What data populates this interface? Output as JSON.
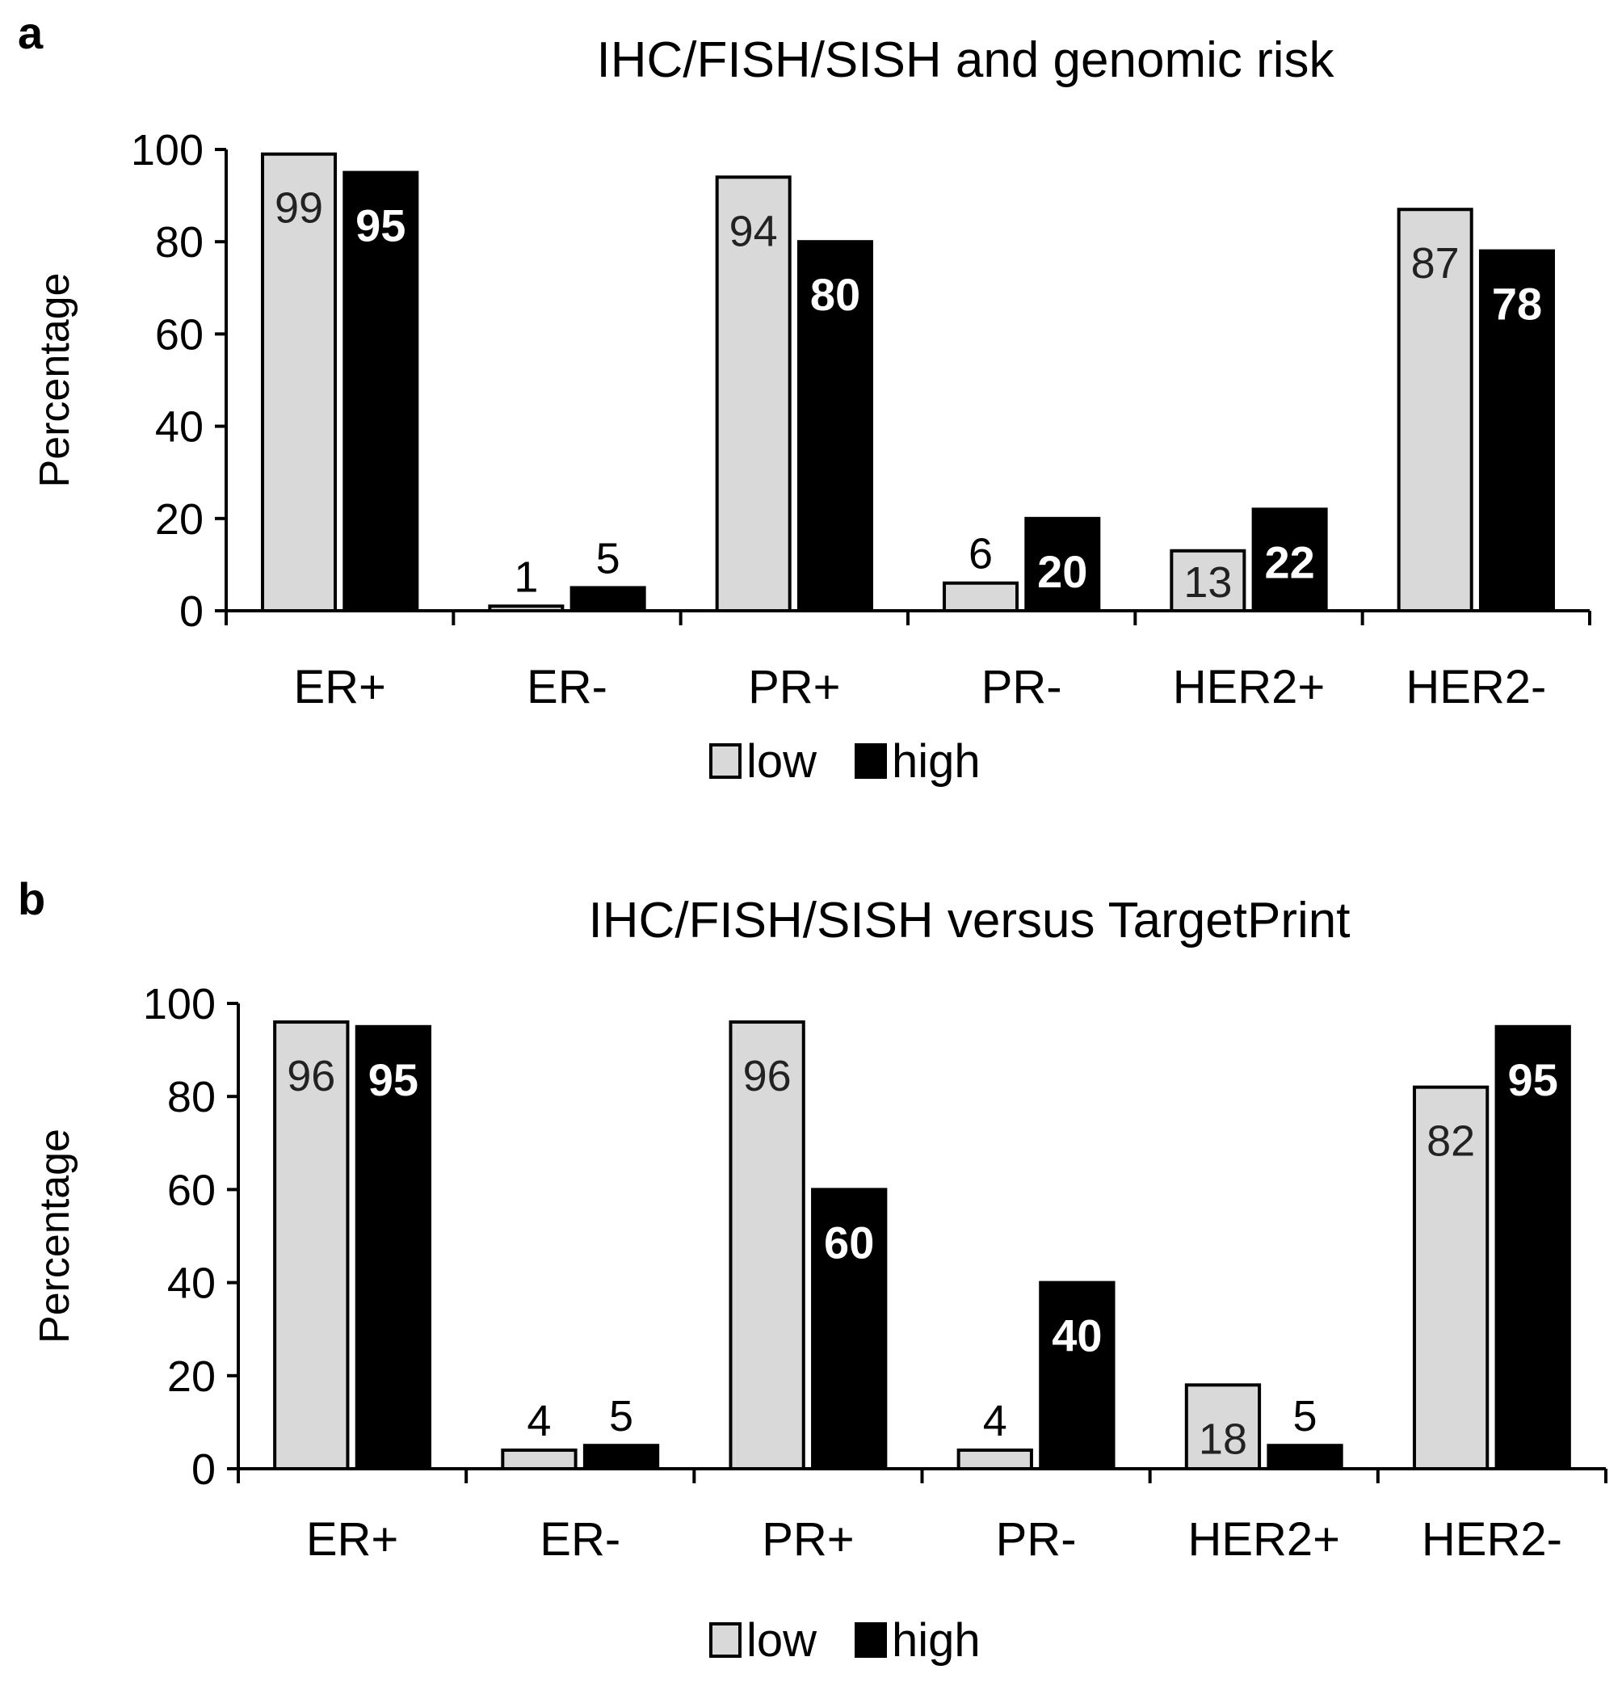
{
  "chart_data": [
    {
      "panel": "a",
      "type": "bar",
      "title": "IHC/FISH/SISH and genomic risk",
      "xlabel": "",
      "ylabel": "Percentage",
      "ylim": [
        0,
        100
      ],
      "yticks": [
        "0",
        "20",
        "40",
        "60",
        "80",
        "100"
      ],
      "categories": [
        "ER+",
        "ER-",
        "PR+",
        "PR-",
        "HER2+",
        "HER2-"
      ],
      "series": [
        {
          "name": "low",
          "color": "#d9d9d9",
          "values": [
            99,
            1,
            94,
            6,
            13,
            87
          ]
        },
        {
          "name": "high",
          "color": "#000000",
          "values": [
            95,
            5,
            80,
            20,
            22,
            78
          ]
        }
      ],
      "legend": "bottom-center"
    },
    {
      "panel": "b",
      "type": "bar",
      "title": "IHC/FISH/SISH versus TargetPrint",
      "xlabel": "",
      "ylabel": "Percentage",
      "ylim": [
        0,
        100
      ],
      "yticks": [
        "0",
        "20",
        "40",
        "60",
        "80",
        "100"
      ],
      "categories": [
        "ER+",
        "ER-",
        "PR+",
        "PR-",
        "HER2+",
        "HER2-"
      ],
      "series": [
        {
          "name": "low",
          "color": "#d9d9d9",
          "values": [
            96,
            4,
            96,
            4,
            18,
            82
          ]
        },
        {
          "name": "high",
          "color": "#000000",
          "values": [
            95,
            5,
            60,
            40,
            5,
            95
          ]
        }
      ],
      "legend": "bottom-center"
    }
  ]
}
